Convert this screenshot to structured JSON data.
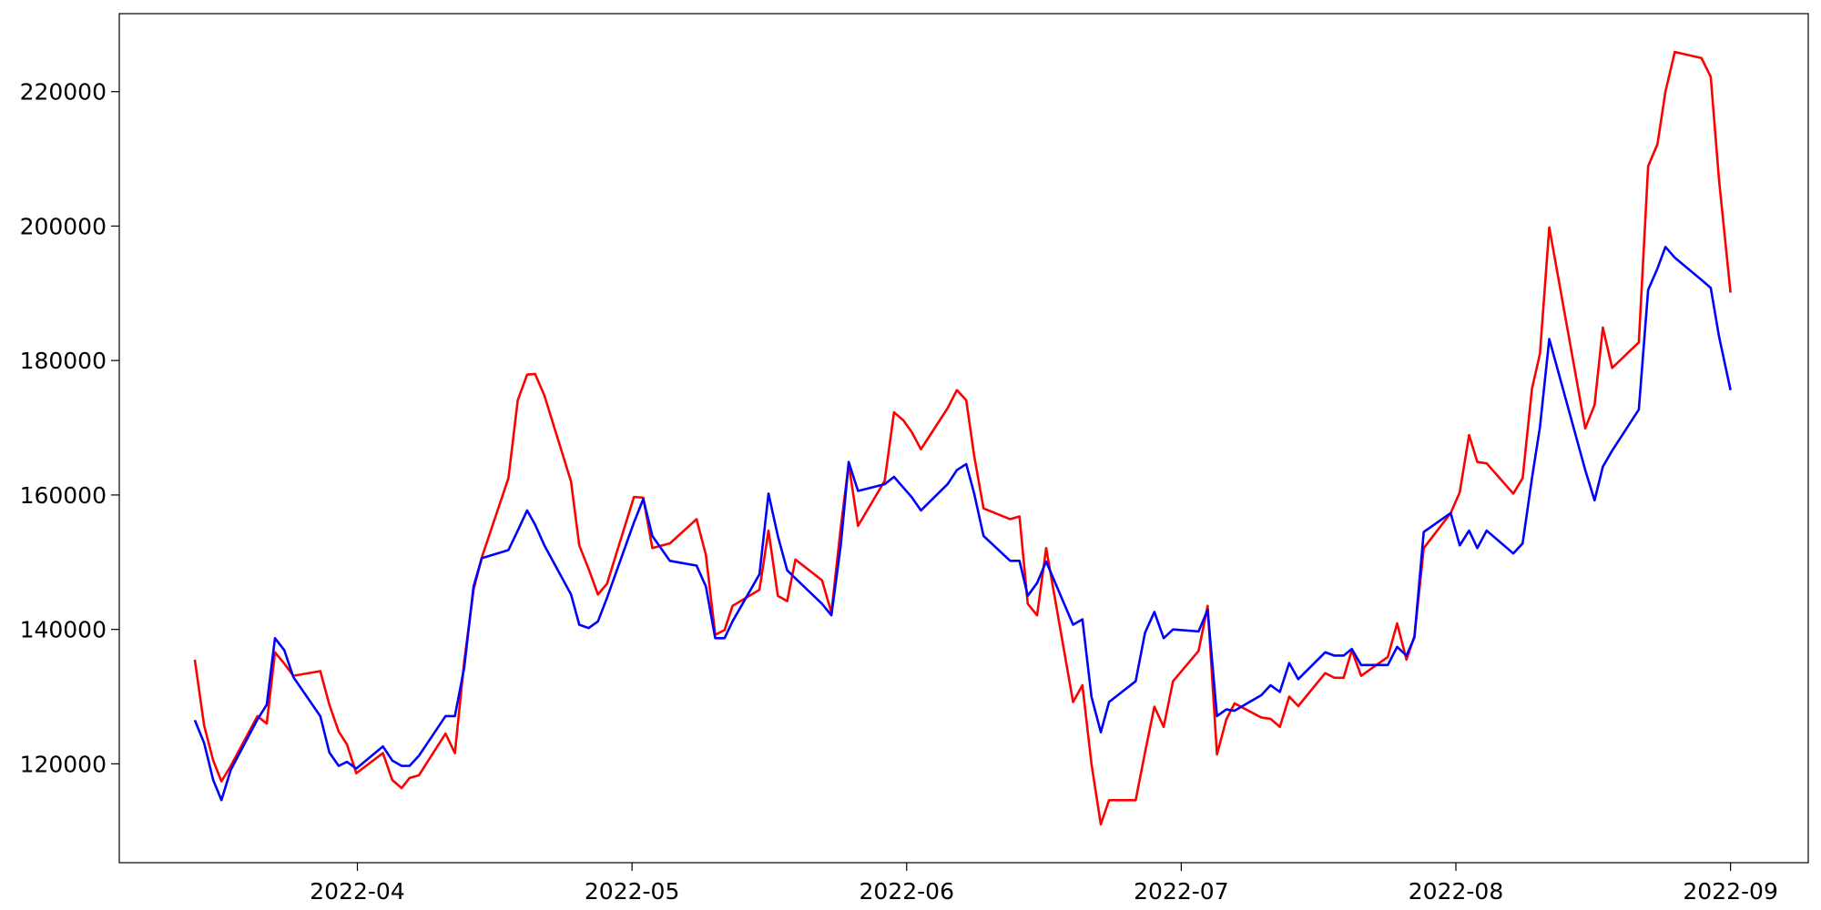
{
  "chart_data": {
    "type": "line",
    "x": [
      3.408,
      3.442,
      3.475,
      3.505,
      3.539,
      3.636,
      3.67,
      3.7,
      3.734,
      3.767,
      3.865,
      3.898,
      3.932,
      3.962,
      3.996,
      4.093,
      4.127,
      4.161,
      4.19,
      4.224,
      4.321,
      4.355,
      4.389,
      4.423,
      4.453,
      4.55,
      4.584,
      4.618,
      4.647,
      4.681,
      4.778,
      4.808,
      4.842,
      4.876,
      4.909,
      5.007,
      5.041,
      5.074,
      5.138,
      5.235,
      5.269,
      5.303,
      5.337,
      5.366,
      5.464,
      5.497,
      5.531,
      5.565,
      5.595,
      5.692,
      5.726,
      5.76,
      5.789,
      5.823,
      5.92,
      5.954,
      5.988,
      6.018,
      6.052,
      6.149,
      6.183,
      6.217,
      6.246,
      6.28,
      6.377,
      6.411,
      6.441,
      6.475,
      6.508,
      6.606,
      6.64,
      6.673,
      6.707,
      6.737,
      6.834,
      6.868,
      6.902,
      6.936,
      6.97,
      7.063,
      7.096,
      7.13,
      7.164,
      7.194,
      7.291,
      7.325,
      7.359,
      7.393,
      7.426,
      7.524,
      7.558,
      7.591,
      7.621,
      7.655,
      7.752,
      7.786,
      7.82,
      7.849,
      7.883,
      7.981,
      8.014,
      8.048,
      8.078,
      8.112,
      8.209,
      8.243,
      8.277,
      8.306,
      8.34,
      8.471,
      8.505,
      8.535,
      8.569,
      8.666,
      8.7,
      8.734,
      8.763,
      8.797,
      8.894,
      8.928,
      8.958,
      9.0
    ],
    "series": [
      {
        "color": "#ff0000",
        "values": [
          135500,
          125700,
          120500,
          117400,
          119700,
          127100,
          126000,
          136600,
          134900,
          133100,
          133800,
          128800,
          124800,
          122900,
          118600,
          121600,
          117600,
          116400,
          117900,
          118300,
          124500,
          121600,
          135200,
          145900,
          150700,
          162500,
          174100,
          177900,
          178000,
          174800,
          162000,
          152500,
          149000,
          145200,
          146800,
          159700,
          159600,
          152100,
          152800,
          156400,
          151100,
          139200,
          139900,
          143500,
          145900,
          154700,
          145000,
          144200,
          150400,
          147300,
          142500,
          155100,
          164600,
          155400,
          162100,
          172300,
          171100,
          169400,
          166800,
          172900,
          175600,
          174100,
          165800,
          158000,
          156400,
          156800,
          143800,
          142100,
          152100,
          129200,
          131700,
          120000,
          111000,
          114600,
          114600,
          121700,
          128500,
          125500,
          132300,
          136800,
          143500,
          121400,
          126600,
          129000,
          126900,
          126700,
          125500,
          130000,
          128600,
          133500,
          132800,
          132800,
          136900,
          133100,
          135900,
          140900,
          135500,
          139000,
          152100,
          157300,
          160400,
          168900,
          164900,
          164700,
          160200,
          162500,
          175800,
          181000,
          199800,
          169900,
          173400,
          184900,
          178900,
          182700,
          208900,
          212200,
          220000,
          225900,
          225000,
          222200,
          206900,
          190100
        ]
      },
      {
        "color": "#0000ff",
        "values": [
          126500,
          123100,
          117600,
          114600,
          119100,
          126600,
          128800,
          138700,
          136900,
          132900,
          127100,
          121700,
          119700,
          120300,
          119300,
          122600,
          120500,
          119700,
          119700,
          121200,
          127100,
          127100,
          134300,
          146400,
          150600,
          151800,
          154700,
          157700,
          155600,
          152500,
          145200,
          140700,
          140200,
          141200,
          144700,
          155900,
          159400,
          153900,
          150200,
          149500,
          146400,
          138700,
          138700,
          141200,
          148200,
          160200,
          153900,
          148800,
          147600,
          143800,
          142100,
          152500,
          164900,
          160600,
          161600,
          162700,
          161100,
          159700,
          157700,
          161600,
          163700,
          164600,
          160200,
          153900,
          150200,
          150200,
          145000,
          146900,
          150100,
          140700,
          141500,
          130000,
          124700,
          129200,
          132300,
          139500,
          142600,
          138700,
          140000,
          139700,
          142900,
          127100,
          128100,
          127900,
          130200,
          131700,
          130700,
          135000,
          132600,
          136600,
          136100,
          136100,
          137100,
          134700,
          134700,
          137400,
          136100,
          138800,
          154500,
          157300,
          152500,
          154700,
          152100,
          154700,
          151300,
          152800,
          162500,
          170100,
          183200,
          163700,
          159200,
          164200,
          166600,
          172700,
          190500,
          193700,
          196900,
          195300,
          192000,
          190800,
          183600,
          175600
        ]
      }
    ],
    "xlim": [
      3.133,
      9.283
    ],
    "xticks": [
      {
        "value": 4,
        "label": "2022-04"
      },
      {
        "value": 5,
        "label": "2022-05"
      },
      {
        "value": 6,
        "label": "2022-06"
      },
      {
        "value": 7,
        "label": "2022-07"
      },
      {
        "value": 8,
        "label": "2022-08"
      },
      {
        "value": 9,
        "label": "2022-09"
      }
    ],
    "ylim": [
      105300,
      231600
    ],
    "yticks": [
      120000,
      140000,
      160000,
      180000,
      200000,
      220000
    ]
  }
}
